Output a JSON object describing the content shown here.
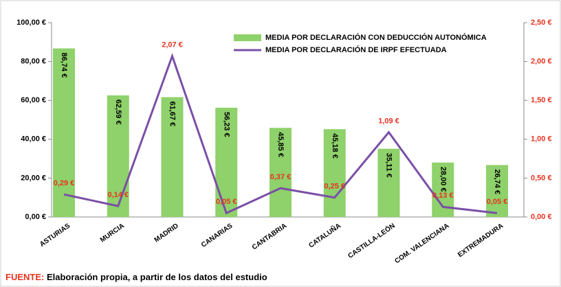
{
  "chart_data": {
    "type": "bar",
    "categories": [
      "ASTURIAS",
      "MURCIA",
      "MADRID",
      "CANARIAS",
      "CANTABRIA",
      "CATALUÑA",
      "CASTILLA-LEÓN",
      "COM. VALENCIANA",
      "EXTREMADURA"
    ],
    "series": [
      {
        "name": "MEDIA POR DECLARACIÓN CON DEDUCCIÓN AUTONÓMICA",
        "type": "bar",
        "color": "#8fd16b",
        "values": [
          86.74,
          62.59,
          61.67,
          56.23,
          45.85,
          45.18,
          35.11,
          28.0,
          26.74
        ],
        "value_labels": [
          "86,74 €",
          "62,59 €",
          "61,67 €",
          "56,23 €",
          "45,85 €",
          "45,18 €",
          "35,11 €",
          "28,00 €",
          "26,74 €"
        ]
      },
      {
        "name": "MEDIA POR DECLARACIÓN DE IRPF EFECTUADA",
        "type": "line",
        "axis": "y2",
        "color": "#7a4fa6",
        "values": [
          0.29,
          0.14,
          2.07,
          0.05,
          0.37,
          0.25,
          1.09,
          0.13,
          0.05
        ],
        "value_labels": [
          "0,29 €",
          "0,14 €",
          "2,07 €",
          "0,05 €",
          "0,37 €",
          "0,25 €",
          "1,09 €",
          "0,13 €",
          "0,05 €"
        ]
      }
    ],
    "ylim": [
      0,
      100
    ],
    "yticks": [
      {
        "value": 0,
        "label": "0,00 €"
      },
      {
        "value": 20,
        "label": "20,00 €"
      },
      {
        "value": 40,
        "label": "40,00 €"
      },
      {
        "value": 60,
        "label": "60,00 €"
      },
      {
        "value": 80,
        "label": "80,00 €"
      },
      {
        "value": 100,
        "label": "100,00 €"
      }
    ],
    "y2lim": [
      0,
      2.5
    ],
    "y2ticks": [
      {
        "value": 0,
        "label": "0,00 €"
      },
      {
        "value": 0.5,
        "label": "0,50 €"
      },
      {
        "value": 1,
        "label": "1,00 €"
      },
      {
        "value": 1.5,
        "label": "1,50 €"
      },
      {
        "value": 2,
        "label": "2,00 €"
      },
      {
        "value": 2.5,
        "label": "2,50 €"
      }
    ],
    "source_label": "FUENTE:",
    "source_text": "Elaboración propia, a partir de los datos del estudio"
  }
}
